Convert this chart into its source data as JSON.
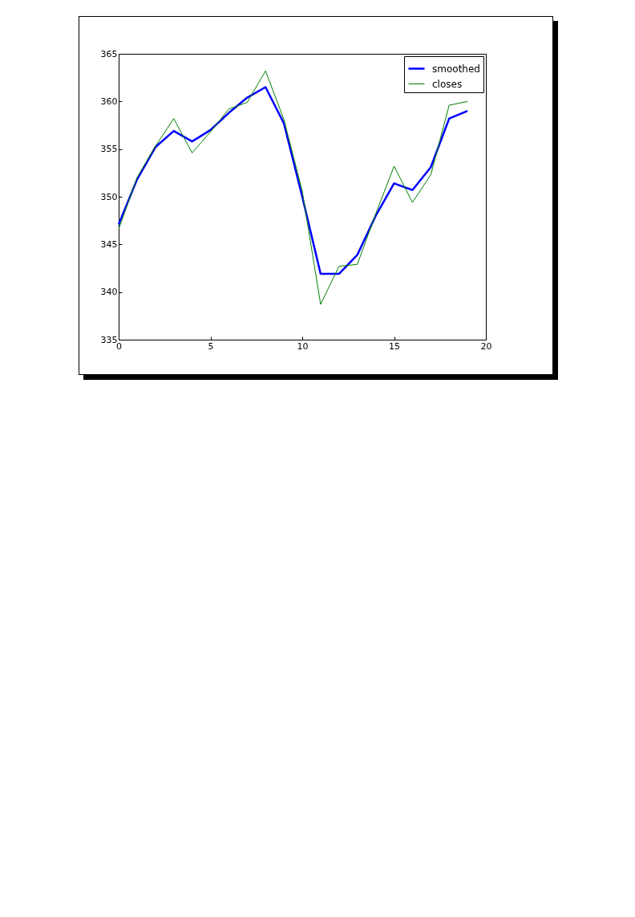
{
  "chart_data": {
    "type": "line",
    "x": [
      0,
      1,
      2,
      3,
      4,
      5,
      6,
      7,
      8,
      9,
      10,
      11,
      12,
      13,
      14,
      15,
      16,
      17,
      18,
      19
    ],
    "series": [
      {
        "name": "smoothed",
        "color": "#0000ff",
        "values": [
          347.1,
          351.8,
          355.2,
          356.9,
          355.8,
          357.0,
          358.8,
          360.4,
          361.5,
          357.7,
          350.0,
          341.9,
          341.9,
          343.9,
          348.0,
          351.4,
          350.7,
          353.1,
          358.2,
          359.0
        ]
      },
      {
        "name": "closes",
        "color": "#008000",
        "values": [
          346.6,
          352.0,
          355.3,
          358.2,
          354.6,
          356.8,
          359.2,
          359.9,
          363.2,
          358.1,
          350.6,
          338.7,
          342.7,
          342.9,
          348.2,
          353.2,
          349.4,
          352.3,
          359.6,
          360.0
        ]
      }
    ],
    "xlim": [
      0,
      20
    ],
    "xticks": [
      0,
      5,
      10,
      15,
      20
    ],
    "ylim": [
      335,
      365
    ],
    "yticks": [
      335,
      340,
      345,
      350,
      355,
      360,
      365
    ],
    "grid": false,
    "legend": "top right",
    "marker": "none",
    "line_style": "solid"
  }
}
